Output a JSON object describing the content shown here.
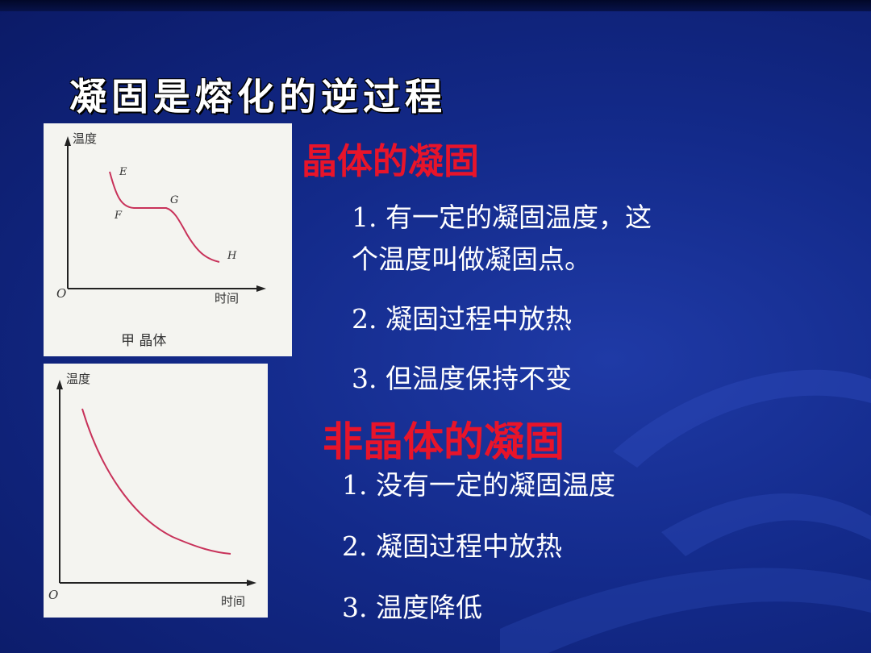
{
  "slide": {
    "title": "凝固是熔化的逆过程",
    "crystal": {
      "heading": "晶体的凝固",
      "points": [
        "1. 有一定的凝固温度，这",
        "个温度叫做凝固点。",
        "2. 凝固过程中放热",
        "3. 但温度保持不变"
      ]
    },
    "amorphous": {
      "heading": "非晶体的凝固",
      "points": [
        "1. 没有一定的凝固温度",
        "2. 凝固过程中放热",
        "3. 温度降低"
      ]
    }
  },
  "figure_crystal": {
    "y_axis": "温度",
    "x_axis": "时间",
    "origin": "O",
    "caption": "甲  晶体",
    "point_labels": [
      "E",
      "F",
      "G",
      "H"
    ],
    "curve_color": "#c8325a"
  },
  "figure_amorphous": {
    "y_axis": "温度",
    "x_axis": "时间",
    "origin": "O",
    "curve_color": "#c8325a"
  },
  "colors": {
    "heading": "#e8142a",
    "text": "#ffffff",
    "background": "#132a8a"
  }
}
